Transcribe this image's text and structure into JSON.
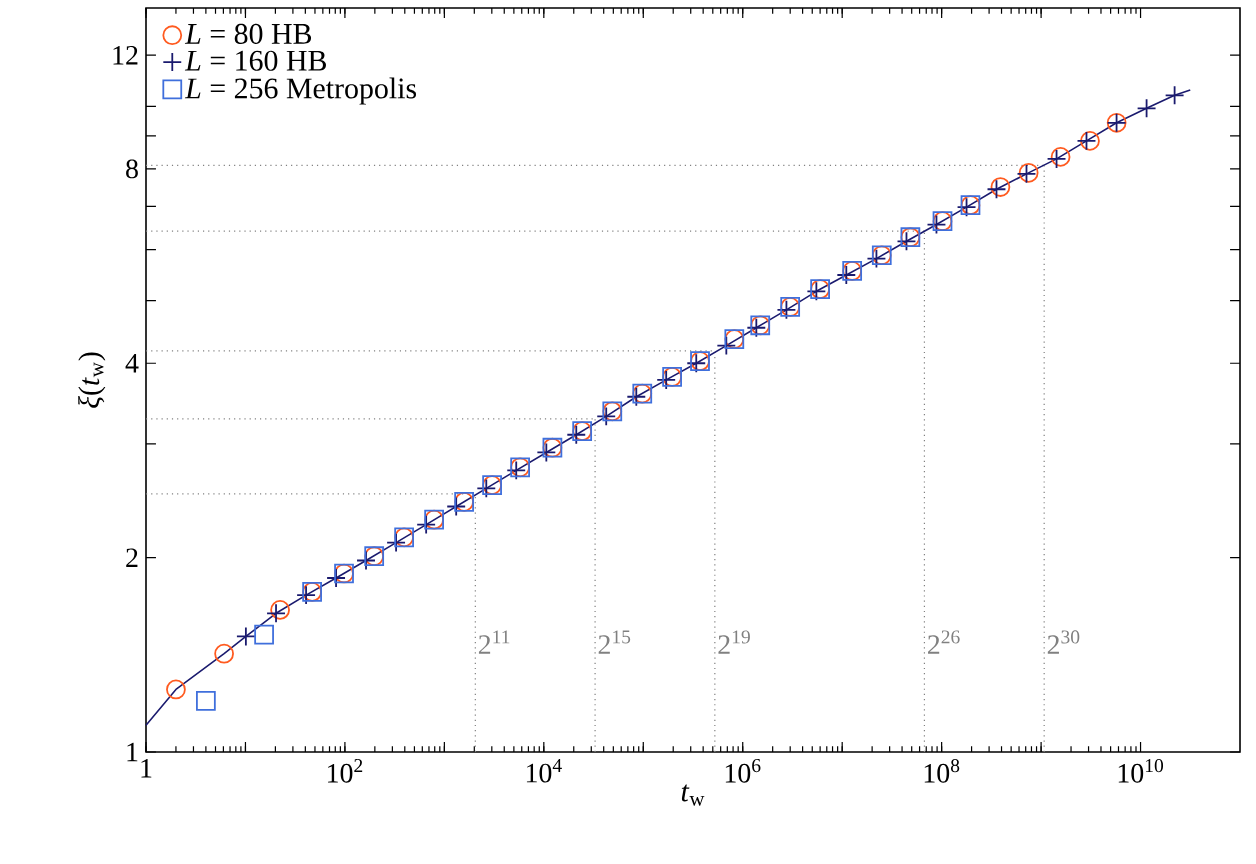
{
  "chart_data": {
    "type": "scatter",
    "xlabel": "*t*$_{w}$",
    "ylabel": "*ξ*(*t*$_{w}$)",
    "log": "xy",
    "grid": false,
    "legend": "top left",
    "xlim": [
      1,
      100000000000
    ],
    "ylim": [
      1,
      14.2
    ],
    "xticks": [
      1,
      {
        "value": 10,
        "label": null
      },
      {
        "value": 100,
        "label": "10$^{2}$"
      },
      {
        "value": 1000,
        "label": null
      },
      {
        "value": 10000,
        "label": "10$^{4}$"
      },
      {
        "value": 100000,
        "label": null
      },
      {
        "value": 1000000,
        "label": "10$^{6}$"
      },
      {
        "value": 10000000,
        "label": null
      },
      {
        "value": 100000000,
        "label": "10$^{8}$"
      },
      {
        "value": 1000000000,
        "label": null
      },
      {
        "value": 10000000000,
        "label": "10$^{10}$"
      }
    ],
    "yticks": [
      1,
      2,
      4,
      8,
      12,
      {
        "value": 3,
        "label": null
      },
      {
        "value": 5,
        "label": null
      },
      {
        "value": 6,
        "label": null
      },
      {
        "value": 7,
        "label": null
      },
      {
        "value": 9,
        "label": null
      },
      {
        "value": 10,
        "label": null
      }
    ],
    "ref_lines": [
      {
        "axis": "x",
        "value": 2048,
        "color": "#808080",
        "line_style": "dotted"
      },
      {
        "axis": "x",
        "value": 32768,
        "color": "#808080",
        "line_style": "dotted"
      },
      {
        "axis": "x",
        "value": 524288,
        "color": "#808080",
        "line_style": "dotted"
      },
      {
        "axis": "x",
        "value": 67108864,
        "color": "#808080",
        "line_style": "dotted"
      },
      {
        "axis": "x",
        "value": 1073741824,
        "color": "#808080",
        "line_style": "dotted"
      },
      {
        "axis": "y",
        "value": 2.51,
        "color": "#808080",
        "line_style": "dotted"
      },
      {
        "axis": "y",
        "value": 3.28,
        "color": "#808080",
        "line_style": "dotted"
      },
      {
        "axis": "y",
        "value": 4.18,
        "color": "#808080",
        "line_style": "dotted"
      },
      {
        "axis": "y",
        "value": 6.41,
        "color": "#808080",
        "line_style": "dotted"
      },
      {
        "axis": "y",
        "value": 8.1,
        "color": "#808080",
        "line_style": "dotted"
      }
    ],
    "annotations": [
      {
        "text": "2$^{11}$",
        "x": 2048,
        "y": 1.48
      },
      {
        "text": "2$^{15}$",
        "x": 32768,
        "y": 1.48
      },
      {
        "text": "2$^{19}$",
        "x": 524288,
        "y": 1.48
      },
      {
        "text": "2$^{26}$",
        "x": 67108864,
        "y": 1.48
      },
      {
        "text": "2$^{30}$",
        "x": 1073741824,
        "y": 1.48
      }
    ],
    "series": [
      {
        "type": "line",
        "color": "#1a1a6e",
        "marker": "none",
        "line_style": "solid",
        "x": [
          1,
          2,
          6.1,
          10.1,
          20.3,
          40.7,
          81.5,
          163,
          327,
          656,
          1315,
          2640,
          5280,
          10600,
          21200,
          42400,
          85100,
          170000,
          341000,
          684000,
          1370000,
          2750000,
          5500000,
          11000000,
          22100000,
          44300000,
          88700000,
          178000000,
          356000000,
          713000000,
          1430000000,
          2860000000,
          5740000000,
          11500000000,
          22000000000,
          31600000000
        ],
        "values": [
          1.1,
          1.25,
          1.42,
          1.51,
          1.64,
          1.75,
          1.86,
          1.98,
          2.11,
          2.25,
          2.4,
          2.56,
          2.73,
          2.91,
          3.1,
          3.31,
          3.55,
          3.77,
          4.0,
          4.26,
          4.54,
          4.84,
          5.17,
          5.48,
          5.81,
          6.18,
          6.56,
          6.98,
          7.44,
          7.86,
          8.29,
          8.84,
          9.43,
          9.93,
          10.4,
          10.6
        ]
      },
      {
        "name": "*L* = 80 HB",
        "type": "scatter",
        "color": "#ff5a1f",
        "marker": "circle",
        "x": [
          2,
          6.1,
          22.3,
          46.8,
          98,
          197,
          394,
          789,
          1580,
          3020,
          5780,
          12200,
          24300,
          48800,
          97700,
          195000,
          372000,
          823000,
          1500000,
          3000000,
          6000000,
          12600000,
          25000000,
          48500000,
          102000000,
          195000000,
          390000000,
          750000000,
          1570000000,
          3100000000,
          5750000000
        ],
        "values": [
          1.25,
          1.42,
          1.66,
          1.77,
          1.89,
          2.01,
          2.15,
          2.29,
          2.44,
          2.59,
          2.76,
          2.96,
          3.14,
          3.37,
          3.59,
          3.81,
          4.03,
          4.36,
          4.58,
          4.89,
          5.21,
          5.56,
          5.88,
          6.27,
          6.64,
          7.03,
          7.5,
          7.89,
          8.35,
          8.84,
          9.43
        ]
      },
      {
        "name": "*L* = 160 HB",
        "type": "scatter",
        "color": "#1a1a6e",
        "marker": "cross",
        "x": [
          10.1,
          20.3,
          40.7,
          81.5,
          163,
          327,
          656,
          1315,
          2640,
          5280,
          10600,
          21200,
          42400,
          85100,
          170000,
          341000,
          684000,
          1370000,
          2750000,
          5500000,
          11000000,
          22100000,
          44300000,
          88700000,
          178000000,
          356000000,
          713000000,
          1430000000,
          2860000000,
          5740000000,
          11500000000,
          22000000000
        ],
        "values": [
          1.51,
          1.64,
          1.75,
          1.86,
          1.98,
          2.11,
          2.25,
          2.4,
          2.56,
          2.73,
          2.91,
          3.1,
          3.31,
          3.55,
          3.77,
          4.0,
          4.26,
          4.54,
          4.84,
          5.17,
          5.48,
          5.81,
          6.18,
          6.56,
          6.98,
          7.44,
          7.86,
          8.29,
          8.84,
          9.43,
          9.93,
          10.4
        ]
      },
      {
        "name": "*L* = 256 Metropolis",
        "type": "scatter",
        "color": "#3f6fdc",
        "marker": "square",
        "x": [
          4,
          15.4,
          46.8,
          98,
          197,
          394,
          789,
          1580,
          3020,
          5780,
          12200,
          24300,
          48800,
          97700,
          195000,
          372000,
          823000,
          1500000,
          3000000,
          6000000,
          12600000,
          25000000,
          48500000,
          102000000,
          195000000
        ],
        "values": [
          1.2,
          1.52,
          1.77,
          1.89,
          2.01,
          2.15,
          2.29,
          2.44,
          2.59,
          2.76,
          2.96,
          3.14,
          3.37,
          3.59,
          3.81,
          4.03,
          4.36,
          4.58,
          4.89,
          5.21,
          5.56,
          5.88,
          6.27,
          6.64,
          7.03
        ]
      }
    ]
  }
}
